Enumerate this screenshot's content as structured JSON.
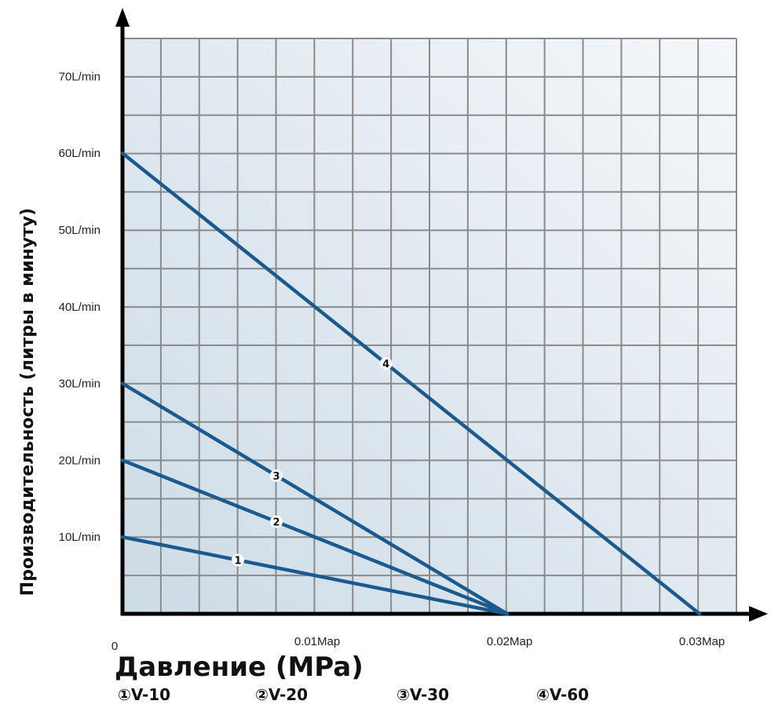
{
  "chart_data": {
    "type": "line",
    "title": "",
    "xlabel": "Давление (MPa)",
    "ylabel": "Производительность (литры в минуту)",
    "xlim": [
      0,
      0.032
    ],
    "ylim": [
      0,
      75
    ],
    "grid": true,
    "origin_label": "0",
    "x_ticks": [
      {
        "value": 0.01,
        "label": "0.01Map"
      },
      {
        "value": 0.02,
        "label": "0.02Map"
      },
      {
        "value": 0.03,
        "label": "0.03Map"
      }
    ],
    "y_ticks": [
      {
        "value": 10,
        "label": "10L/min"
      },
      {
        "value": 20,
        "label": "20L/min"
      },
      {
        "value": 30,
        "label": "30L/min"
      },
      {
        "value": 40,
        "label": "40L/min"
      },
      {
        "value": 50,
        "label": "50L/min"
      },
      {
        "value": 60,
        "label": "60L/min"
      },
      {
        "value": 70,
        "label": "70L/min"
      }
    ],
    "series": [
      {
        "marker": "1",
        "x": [
          0,
          0.02
        ],
        "y": [
          10,
          0
        ],
        "marker_x": 0.006
      },
      {
        "marker": "2",
        "x": [
          0,
          0.02
        ],
        "y": [
          20,
          0
        ],
        "marker_x": 0.008
      },
      {
        "marker": "3",
        "x": [
          0,
          0.02
        ],
        "y": [
          30,
          0
        ],
        "marker_x": 0.008
      },
      {
        "marker": "4",
        "x": [
          0,
          0.03
        ],
        "y": [
          60,
          0
        ],
        "marker_x": 0.0137
      }
    ],
    "legend": [
      "①V-10",
      "②V-20",
      "③V-30",
      "④V-60"
    ],
    "line_color": "#1b5a8e",
    "grid_color": "#8a8a8a",
    "background_gradient": [
      "#f4f7fa",
      "#cddbe6"
    ]
  }
}
